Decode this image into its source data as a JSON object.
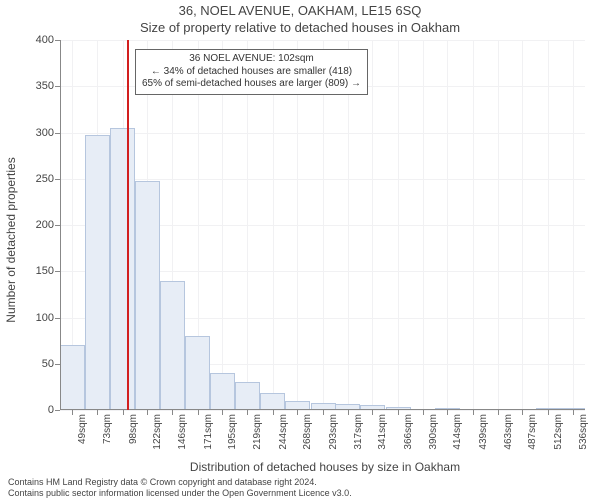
{
  "title": "36, NOEL AVENUE, OAKHAM, LE15 6SQ",
  "subtitle": "Size of property relative to detached houses in Oakham",
  "ylabel": "Number of detached properties",
  "xlabel": "Distribution of detached houses by size in Oakham",
  "footer_line1": "Contains HM Land Registry data © Crown copyright and database right 2024.",
  "footer_line2": "Contains public sector information licensed under the Open Government Licence v3.0.",
  "chart": {
    "type": "histogram",
    "background_color": "#ffffff",
    "grid_color": "#f1f1f3",
    "axis_color": "#888888",
    "bar_fill": "#e7edf6",
    "bar_border": "#b6c6de",
    "refline_color": "#d21f1f",
    "text_color": "#444444",
    "ylim": [
      0,
      400
    ],
    "ytick_step": 50,
    "x_min": 37,
    "x_max": 548,
    "bin_width_sqm": 24.5,
    "bar_width_ratio": 1.0,
    "refline_x_sqm": 102,
    "x_ticks": [
      49,
      73,
      98,
      122,
      146,
      171,
      195,
      219,
      244,
      268,
      293,
      317,
      341,
      366,
      390,
      414,
      439,
      463,
      487,
      512,
      536
    ],
    "x_tick_suffix": "sqm",
    "bins": [
      {
        "start": 37,
        "count": 70
      },
      {
        "start": 61,
        "count": 297
      },
      {
        "start": 86,
        "count": 305
      },
      {
        "start": 110,
        "count": 248
      },
      {
        "start": 134,
        "count": 140
      },
      {
        "start": 159,
        "count": 80
      },
      {
        "start": 183,
        "count": 40
      },
      {
        "start": 207,
        "count": 30
      },
      {
        "start": 232,
        "count": 18
      },
      {
        "start": 256,
        "count": 10
      },
      {
        "start": 281,
        "count": 8
      },
      {
        "start": 305,
        "count": 6
      },
      {
        "start": 329,
        "count": 5
      },
      {
        "start": 354,
        "count": 3
      },
      {
        "start": 378,
        "count": 0
      },
      {
        "start": 402,
        "count": 2
      },
      {
        "start": 427,
        "count": 0
      },
      {
        "start": 451,
        "count": 0
      },
      {
        "start": 475,
        "count": 0
      },
      {
        "start": 500,
        "count": 2
      },
      {
        "start": 524,
        "count": 2
      }
    ],
    "annotation": {
      "line1": "36 NOEL AVENUE: 102sqm",
      "line2": "← 34% of detached houses are smaller (418)",
      "line3": "65% of semi-detached houses are larger (809) →",
      "left_sqm": 110,
      "top_count": 390,
      "border_color": "#666666",
      "background_color": "#ffffff",
      "fontsize": 10
    }
  }
}
